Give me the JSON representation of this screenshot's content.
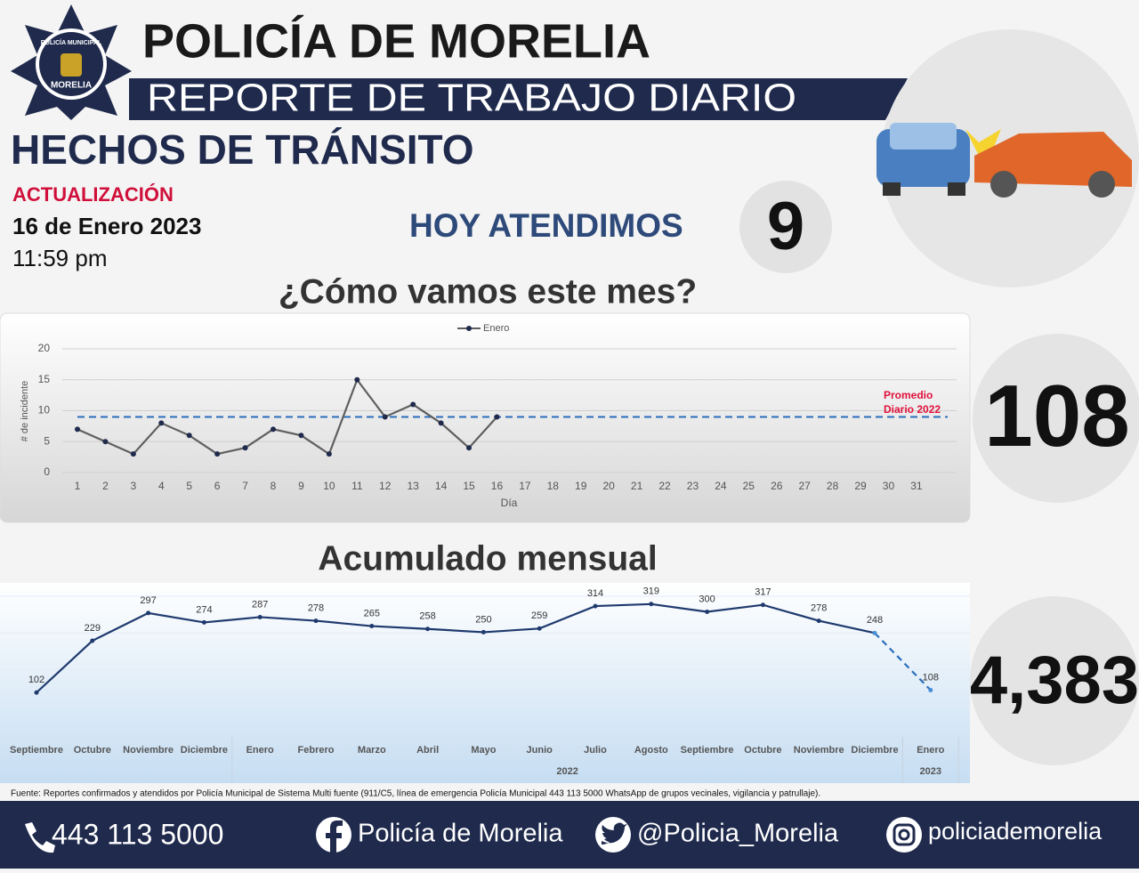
{
  "header": {
    "title": "POLICÍA DE MORELIA",
    "subtitle": "REPORTE DE TRABAJO DIARIO",
    "badge_top": "POLICÍA MUNICIPAL",
    "badge_bottom": "MORELIA"
  },
  "section_title": "HECHOS DE TRÁNSITO",
  "update": {
    "label": "ACTUALIZACIÓN",
    "date": "16 de Enero 2023",
    "time": "11:59 pm"
  },
  "today": {
    "label": "HOY ATENDIMOS",
    "value": 9
  },
  "month_total": 108,
  "year_total": {
    "value": 4383,
    "label": "4,383"
  },
  "source": "Fuente: Reportes confirmados y atendidos por Policía Municipal de Sistema Multi fuente (911/C5, línea de emergencia Policía Municipal 443 113 5000 WhatsApp de grupos vecinales, vigilancia y patrullaje).",
  "footer": {
    "phone": "443 113 5000",
    "facebook": "Policía de Morelia",
    "twitter": "@Policia_Morelia",
    "instagram": "policiademorelia"
  },
  "chart_data": [
    {
      "type": "line",
      "title": "¿Cómo vamos este mes?",
      "categories": [
        "1",
        "2",
        "3",
        "4",
        "5",
        "6",
        "7",
        "8",
        "9",
        "10",
        "11",
        "12",
        "13",
        "14",
        "15",
        "16",
        "17",
        "18",
        "19",
        "20",
        "21",
        "22",
        "23",
        "24",
        "25",
        "26",
        "27",
        "28",
        "29",
        "30",
        "31"
      ],
      "series": [
        {
          "name": "Enero",
          "color": "#5f5f5f",
          "values": [
            7,
            5,
            3,
            8,
            6,
            3,
            4,
            7,
            6,
            3,
            15,
            9,
            11,
            8,
            4,
            9,
            null,
            null,
            null,
            null,
            null,
            null,
            null,
            null,
            null,
            null,
            null,
            null,
            null,
            null,
            null
          ]
        }
      ],
      "xlabel": "Día",
      "ylabel": "# de incidente",
      "ylim": [
        0,
        20
      ],
      "yticks": [
        0,
        5,
        10,
        15,
        20
      ],
      "legend": "top",
      "reference_line": {
        "value": 9,
        "color": "#2a6ebb",
        "label": [
          "Promedio",
          "Diario 2022"
        ],
        "label_color": "#e0103a"
      }
    },
    {
      "type": "line",
      "title": "Acumulado mensual",
      "categories": [
        "Septiembre",
        "Octubre",
        "Noviembre",
        "Diciembre",
        "Enero",
        "Febrero",
        "Marzo",
        "Abril",
        "Mayo",
        "Junio",
        "Julio",
        "Agosto",
        "Septiembre",
        "Octubre",
        "Noviembre",
        "Diciembre",
        "Enero"
      ],
      "groups": [
        {
          "label": "2022",
          "from": 4,
          "to": 15
        },
        {
          "label": "2023",
          "from": 16,
          "to": 16
        }
      ],
      "series": [
        {
          "color": "#1f3a6e",
          "values": [
            102,
            229,
            297,
            274,
            287,
            278,
            265,
            258,
            250,
            259,
            314,
            319,
            300,
            317,
            278,
            248,
            108
          ]
        }
      ],
      "last_segment_dashed": true,
      "ylim": [
        0,
        360
      ]
    }
  ]
}
